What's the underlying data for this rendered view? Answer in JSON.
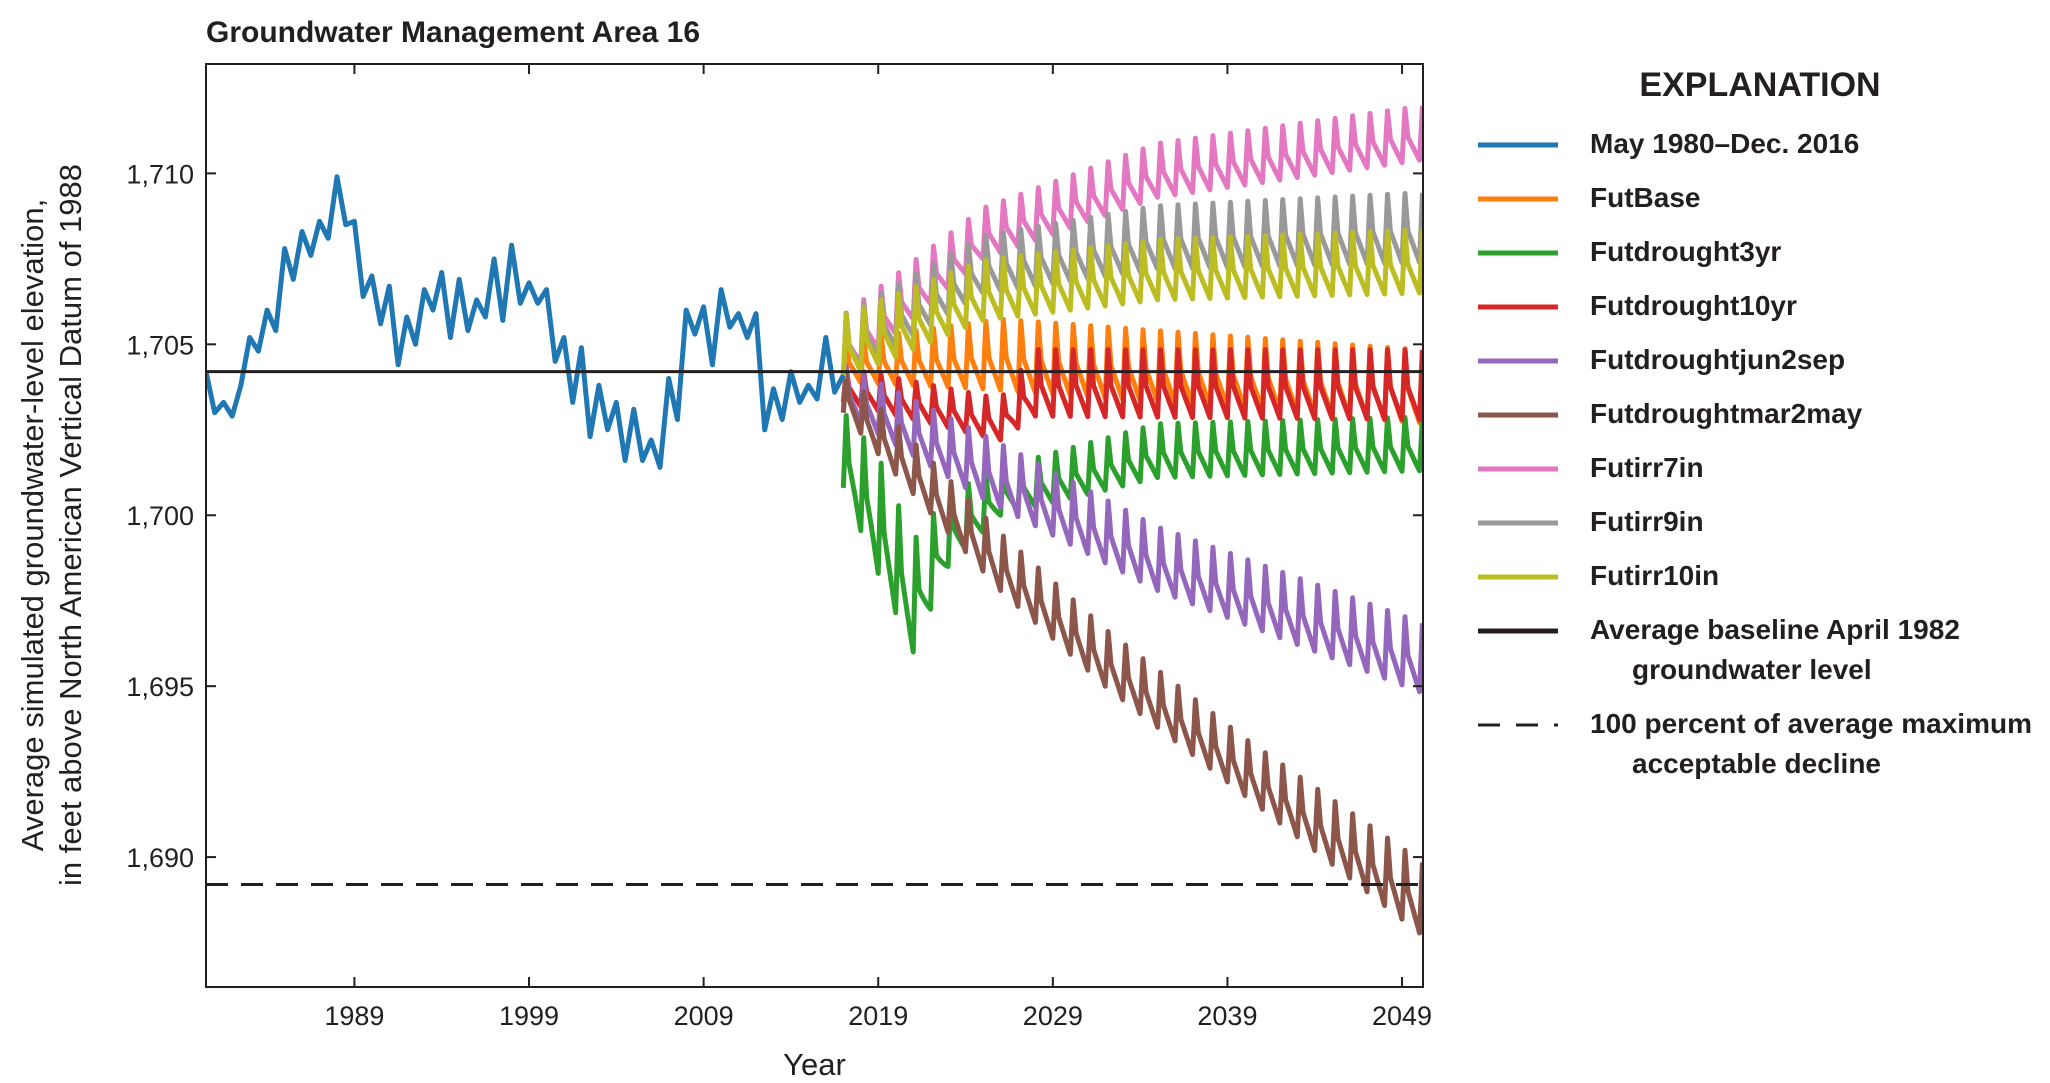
{
  "chart_data": {
    "type": "line",
    "title": "Groundwater Management Area 16",
    "xlabel": "Year",
    "ylabel": [
      "Average simulated groundwater-level elevation,",
      "in feet above North American Vertical Datum of 1988"
    ],
    "xlim": [
      1980.5,
      2050.2
    ],
    "ylim": [
      1686.2,
      1713.2
    ],
    "xticks": [
      1989,
      1999,
      2009,
      2019,
      2029,
      2039,
      2049
    ],
    "xtick_labels": [
      "1989",
      "1999",
      "2009",
      "2019",
      "2029",
      "2039",
      "2049"
    ],
    "yticks": [
      1690,
      1695,
      1700,
      1705,
      1710
    ],
    "ytick_labels": [
      "1,690",
      "1,695",
      "1,700",
      "1,705",
      "1,710"
    ],
    "grid": false,
    "legend_title": "EXPLANATION",
    "legend_position": "right",
    "historical": {
      "name": "May 1980–Dec. 2016",
      "color": "#1f77b4",
      "x": [
        1980.5,
        1981.0,
        1981.5,
        1982.0,
        1982.5,
        1983.0,
        1983.5,
        1984.0,
        1984.5,
        1985.0,
        1985.5,
        1986.0,
        1986.5,
        1987.0,
        1987.5,
        1988.0,
        1988.5,
        1989.0,
        1989.5,
        1990.0,
        1990.5,
        1991.0,
        1991.5,
        1992.0,
        1992.5,
        1993.0,
        1993.5,
        1994.0,
        1994.5,
        1995.0,
        1995.5,
        1996.0,
        1996.5,
        1997.0,
        1997.5,
        1998.0,
        1998.5,
        1999.0,
        1999.5,
        2000.0,
        2000.5,
        2001.0,
        2001.5,
        2002.0,
        2002.5,
        2003.0,
        2003.5,
        2004.0,
        2004.5,
        2005.0,
        2005.5,
        2006.0,
        2006.5,
        2007.0,
        2007.5,
        2008.0,
        2008.5,
        2009.0,
        2009.5,
        2010.0,
        2010.5,
        2011.0,
        2011.5,
        2012.0,
        2012.5,
        2013.0,
        2013.5,
        2014.0,
        2014.5,
        2015.0,
        2015.5,
        2016.0,
        2016.5,
        2017.0
      ],
      "y": [
        1704.2,
        1703.0,
        1703.3,
        1702.9,
        1703.8,
        1705.2,
        1704.8,
        1706.0,
        1705.4,
        1707.8,
        1706.9,
        1708.3,
        1707.6,
        1708.6,
        1708.1,
        1709.9,
        1708.5,
        1708.6,
        1706.4,
        1707.0,
        1705.6,
        1706.7,
        1704.4,
        1705.8,
        1705.0,
        1706.6,
        1706.0,
        1707.1,
        1705.2,
        1706.9,
        1705.4,
        1706.3,
        1705.8,
        1707.5,
        1705.7,
        1707.9,
        1706.2,
        1706.8,
        1706.2,
        1706.6,
        1704.5,
        1705.2,
        1703.3,
        1704.9,
        1702.3,
        1703.8,
        1702.5,
        1703.3,
        1701.6,
        1703.1,
        1701.6,
        1702.2,
        1701.4,
        1704.0,
        1702.8,
        1706.0,
        1705.3,
        1706.1,
        1704.4,
        1706.6,
        1705.5,
        1705.9,
        1705.2,
        1705.9,
        1702.5,
        1703.7,
        1702.8,
        1704.2,
        1703.3,
        1703.8,
        1703.4,
        1705.2,
        1703.6,
        1704.1
      ]
    },
    "scenarios": {
      "period_years": 1.0,
      "x_start": 2017.0,
      "x_end": 2050.2,
      "series": [
        {
          "name": "FutBase",
          "color": "#ff7f0e",
          "low": [
            [
              2017.0,
              1703.9
            ],
            [
              2025.0,
              1703.7
            ],
            [
              2050.2,
              1702.7
            ]
          ],
          "high": [
            [
              2017.0,
              1705.2
            ],
            [
              2026.0,
              1705.9
            ],
            [
              2050.2,
              1705.0
            ]
          ]
        },
        {
          "name": "Futdrought3yr",
          "color": "#2ca02c",
          "low": [
            [
              2017.0,
              1700.8
            ],
            [
              2019.0,
              1698.3
            ],
            [
              2021.0,
              1696.0
            ],
            [
              2023.0,
              1698.5
            ],
            [
              2026.0,
              1700.0
            ],
            [
              2035.0,
              1701.1
            ],
            [
              2050.2,
              1701.3
            ]
          ],
          "high": [
            [
              2017.0,
              1703.2
            ],
            [
              2019.0,
              1702.0
            ],
            [
              2021.0,
              1699.5
            ],
            [
              2023.0,
              1700.8
            ],
            [
              2026.0,
              1701.5
            ],
            [
              2035.0,
              1702.8
            ],
            [
              2050.2,
              1703.0
            ]
          ]
        },
        {
          "name": "Futdrought10yr",
          "color": "#d62728",
          "low": [
            [
              2017.0,
              1703.3
            ],
            [
              2026.0,
              1702.2
            ],
            [
              2028.0,
              1702.9
            ],
            [
              2050.2,
              1702.8
            ]
          ],
          "high": [
            [
              2017.0,
              1704.4
            ],
            [
              2026.0,
              1703.5
            ],
            [
              2028.0,
              1705.0
            ],
            [
              2050.2,
              1705.0
            ]
          ]
        },
        {
          "name": "Futdroughtjun2sep",
          "color": "#9467bd",
          "low": [
            [
              2017.0,
              1703.0
            ],
            [
              2025.0,
              1700.5
            ],
            [
              2035.0,
              1697.8
            ],
            [
              2050.2,
              1694.8
            ]
          ],
          "high": [
            [
              2017.0,
              1704.5
            ],
            [
              2025.0,
              1702.5
            ],
            [
              2035.0,
              1699.8
            ],
            [
              2050.2,
              1697.0
            ]
          ]
        },
        {
          "name": "Futdroughtmar2may",
          "color": "#8c564b",
          "low": [
            [
              2017.0,
              1703.0
            ],
            [
              2020.0,
              1701.2
            ],
            [
              2026.0,
              1697.8
            ],
            [
              2032.0,
              1695.0
            ],
            [
              2040.0,
              1691.8
            ],
            [
              2050.2,
              1687.7
            ]
          ],
          "high": [
            [
              2017.0,
              1704.3
            ],
            [
              2020.0,
              1702.8
            ],
            [
              2026.0,
              1699.6
            ],
            [
              2032.0,
              1696.8
            ],
            [
              2040.0,
              1693.6
            ],
            [
              2050.2,
              1690.0
            ]
          ]
        },
        {
          "name": "Futirr7in",
          "color": "#e377c2",
          "low": [
            [
              2017.0,
              1704.0
            ],
            [
              2025.0,
              1707.5
            ],
            [
              2035.0,
              1709.3
            ],
            [
              2050.2,
              1710.4
            ]
          ],
          "high": [
            [
              2017.0,
              1706.0
            ],
            [
              2025.0,
              1709.1
            ],
            [
              2035.0,
              1711.0
            ],
            [
              2050.2,
              1712.1
            ]
          ]
        },
        {
          "name": "Futirr9in",
          "color": "#999999",
          "low": [
            [
              2017.0,
              1704.0
            ],
            [
              2025.0,
              1706.5
            ],
            [
              2035.0,
              1707.2
            ],
            [
              2050.2,
              1707.4
            ]
          ],
          "high": [
            [
              2017.0,
              1706.0
            ],
            [
              2025.0,
              1708.3
            ],
            [
              2035.0,
              1709.2
            ],
            [
              2050.2,
              1709.6
            ]
          ]
        },
        {
          "name": "Futirr10in",
          "color": "#bcbd22",
          "low": [
            [
              2017.0,
              1704.0
            ],
            [
              2025.0,
              1705.7
            ],
            [
              2035.0,
              1706.3
            ],
            [
              2050.2,
              1706.5
            ]
          ],
          "high": [
            [
              2017.0,
              1706.0
            ],
            [
              2025.0,
              1707.6
            ],
            [
              2035.0,
              1708.2
            ],
            [
              2050.2,
              1708.5
            ]
          ]
        }
      ]
    },
    "reference_lines": [
      {
        "name": "Average baseline April 1982 groundwater level",
        "y": 1704.2,
        "style": "solid",
        "color": "#231f20"
      },
      {
        "name": "100 percent of average maximum acceptable decline",
        "y": 1689.2,
        "style": "dashed",
        "color": "#231f20"
      }
    ],
    "legend": [
      {
        "label": [
          "May 1980–Dec. 2016"
        ],
        "color": "#1f77b4",
        "style": "solid"
      },
      {
        "label": [
          "FutBase"
        ],
        "color": "#ff7f0e",
        "style": "solid"
      },
      {
        "label": [
          "Futdrought3yr"
        ],
        "color": "#2ca02c",
        "style": "solid"
      },
      {
        "label": [
          "Futdrought10yr"
        ],
        "color": "#d62728",
        "style": "solid"
      },
      {
        "label": [
          "Futdroughtjun2sep"
        ],
        "color": "#9467bd",
        "style": "solid"
      },
      {
        "label": [
          "Futdroughtmar2may"
        ],
        "color": "#8c564b",
        "style": "solid"
      },
      {
        "label": [
          "Futirr7in"
        ],
        "color": "#e377c2",
        "style": "solid"
      },
      {
        "label": [
          "Futirr9in"
        ],
        "color": "#999999",
        "style": "solid"
      },
      {
        "label": [
          "Futirr10in"
        ],
        "color": "#bcbd22",
        "style": "solid"
      },
      {
        "label": [
          "Average baseline April 1982",
          "groundwater level"
        ],
        "color": "#231f20",
        "style": "solid"
      },
      {
        "label": [
          "100 percent of average maximum",
          "acceptable decline"
        ],
        "color": "#231f20",
        "style": "dashed"
      }
    ]
  }
}
